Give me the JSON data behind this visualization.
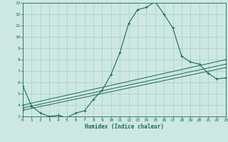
{
  "title": "",
  "xlabel": "Humidex (Indice chaleur)",
  "bg_color": "#cce8e0",
  "grid_color": "#aacccc",
  "line_color": "#1a6b5a",
  "xlim": [
    0,
    23
  ],
  "ylim": [
    3,
    13
  ],
  "xticks": [
    0,
    1,
    2,
    3,
    4,
    5,
    6,
    7,
    8,
    9,
    10,
    11,
    12,
    13,
    14,
    15,
    16,
    17,
    18,
    19,
    20,
    21,
    22,
    23
  ],
  "yticks": [
    3,
    4,
    5,
    6,
    7,
    8,
    9,
    10,
    11,
    12,
    13
  ],
  "main_x": [
    0,
    1,
    2,
    3,
    4,
    5,
    6,
    7,
    8,
    9,
    10,
    11,
    12,
    13,
    14,
    15,
    16,
    17,
    18,
    19,
    20,
    21,
    22,
    23
  ],
  "main_y": [
    5.7,
    3.9,
    3.3,
    3.0,
    3.1,
    2.9,
    3.3,
    3.5,
    4.5,
    5.3,
    6.7,
    8.6,
    11.2,
    12.4,
    12.6,
    13.1,
    12.0,
    10.8,
    8.3,
    7.8,
    7.6,
    6.8,
    6.3,
    6.4
  ],
  "line1_x": [
    0,
    23
  ],
  "line1_y": [
    3.55,
    7.3
  ],
  "line2_x": [
    0,
    23
  ],
  "line2_y": [
    3.75,
    7.6
  ],
  "line3_x": [
    0,
    23
  ],
  "line3_y": [
    4.0,
    8.0
  ]
}
